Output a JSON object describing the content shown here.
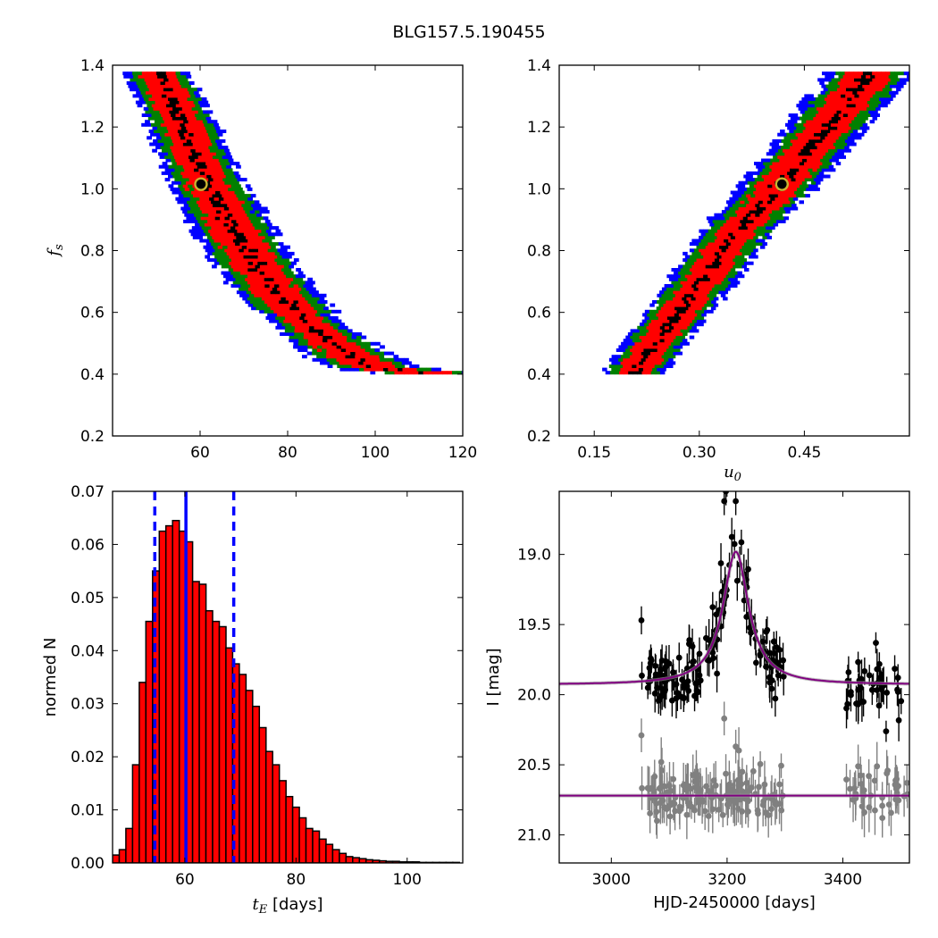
{
  "figure": {
    "title": "BLG157.5.190455"
  },
  "chart_data": [
    {
      "id": "fs_vs_tE",
      "type": "heatmap",
      "xlim": [
        40,
        120
      ],
      "ylim": [
        0.2,
        1.4
      ],
      "xticks": [
        "60",
        "80",
        "100",
        "120"
      ],
      "yticks": [
        "0.2",
        "0.4",
        "0.6",
        "0.8",
        "1.0",
        "1.2",
        "1.4"
      ],
      "xlabel": "",
      "ylabel": "f_s",
      "levels": [
        {
          "name": "",
          "color": "#0000ff"
        },
        {
          "name": "",
          "color": "#008000"
        },
        {
          "name": "",
          "color": "#ff0000"
        },
        {
          "name": "",
          "color": "#000000"
        }
      ],
      "ridge": [
        [
          50,
          1.37
        ],
        [
          55,
          1.22
        ],
        [
          60,
          1.05
        ],
        [
          65,
          0.92
        ],
        [
          70,
          0.8
        ],
        [
          75,
          0.7
        ],
        [
          80,
          0.62
        ],
        [
          85,
          0.55
        ],
        [
          90,
          0.5
        ],
        [
          95,
          0.45
        ],
        [
          100,
          0.42
        ],
        [
          110,
          0.405
        ]
      ],
      "best_fit": {
        "x": 60.2,
        "y": 1.015
      }
    },
    {
      "id": "fs_vs_u0",
      "type": "heatmap",
      "xlim": [
        0.1,
        0.6
      ],
      "ylim": [
        0.2,
        1.4
      ],
      "xticks": [
        "0.15",
        "0.30",
        "0.45"
      ],
      "yticks": [
        "0.2",
        "0.4",
        "0.6",
        "0.8",
        "1.0",
        "1.2",
        "1.4"
      ],
      "xlabel": "u_0",
      "ylabel": "",
      "ridge": [
        [
          0.205,
          0.41
        ],
        [
          0.25,
          0.55
        ],
        [
          0.3,
          0.7
        ],
        [
          0.35,
          0.86
        ],
        [
          0.4,
          0.98
        ],
        [
          0.45,
          1.12
        ],
        [
          0.5,
          1.26
        ],
        [
          0.54,
          1.37
        ]
      ],
      "best_fit": {
        "x": 0.418,
        "y": 1.015
      }
    },
    {
      "id": "tE_histogram",
      "type": "bar",
      "xlim": [
        47,
        110
      ],
      "ylim": [
        0,
        0.07
      ],
      "xticks": [
        "60",
        "80",
        "100"
      ],
      "yticks": [
        "0.00",
        "0.01",
        "0.02",
        "0.03",
        "0.04",
        "0.05",
        "0.06",
        "0.07"
      ],
      "xlabel": "t_E [days]",
      "ylabel": "normed N",
      "bin_start": 47,
      "bin_width": 1.2,
      "values": [
        0.0015,
        0.0025,
        0.0065,
        0.0185,
        0.034,
        0.0455,
        0.055,
        0.0625,
        0.0635,
        0.0645,
        0.0625,
        0.0605,
        0.053,
        0.0525,
        0.0475,
        0.0455,
        0.0445,
        0.0405,
        0.0375,
        0.0355,
        0.0325,
        0.0295,
        0.0255,
        0.021,
        0.0185,
        0.0155,
        0.0125,
        0.0105,
        0.0085,
        0.0065,
        0.006,
        0.0045,
        0.0035,
        0.0025,
        0.0018,
        0.0012,
        0.001,
        0.0008,
        0.0006,
        0.0005,
        0.0004,
        0.0003,
        0.0003,
        0.0002,
        0.0002,
        0.0002,
        0.0001,
        0.0001,
        0.0001,
        0.0001,
        0.0001,
        0.0001
      ],
      "bar_color": "#ff0000",
      "median": 60.2,
      "interval": [
        54.6,
        68.8
      ]
    },
    {
      "id": "light_curve",
      "type": "scatter",
      "xlim": [
        2910,
        3515
      ],
      "ylim": [
        21.2,
        18.55
      ],
      "xticks": [
        "3000",
        "3200",
        "3400"
      ],
      "yticks": [
        "19.0",
        "19.5",
        "20.0",
        "20.5",
        "21.0"
      ],
      "xlabel": "HJD-2450000 [days]",
      "ylabel": "I [mag]",
      "model_color": "#800080",
      "series": [
        {
          "name": "",
          "color": "#000000",
          "baseline": 19.93,
          "peak": 18.98,
          "t0": 3215,
          "width": 27,
          "scatter": 0.11,
          "err": 0.1,
          "segments": [
            [
              3052,
              3055,
              1
            ],
            [
              3062,
              3300,
              140
            ],
            [
              3405,
              3515,
              40
            ]
          ],
          "extra_points": [
            [
              3052,
              19.47
            ],
            [
              3195,
              18.62
            ],
            [
              3215,
              18.62
            ],
            [
              3198,
              18.55
            ]
          ]
        },
        {
          "name": "",
          "color": "#808080",
          "baseline": 20.72,
          "scatter": 0.09,
          "err": 0.12,
          "segments": [
            [
              3052,
              3055,
              1
            ],
            [
              3062,
              3300,
              140
            ],
            [
              3405,
              3515,
              40
            ]
          ],
          "extra_points": [
            [
              3052,
              20.29
            ],
            [
              3195,
              20.17
            ],
            [
              3215,
              20.37
            ],
            [
              3445,
              20.58
            ]
          ]
        }
      ]
    }
  ]
}
